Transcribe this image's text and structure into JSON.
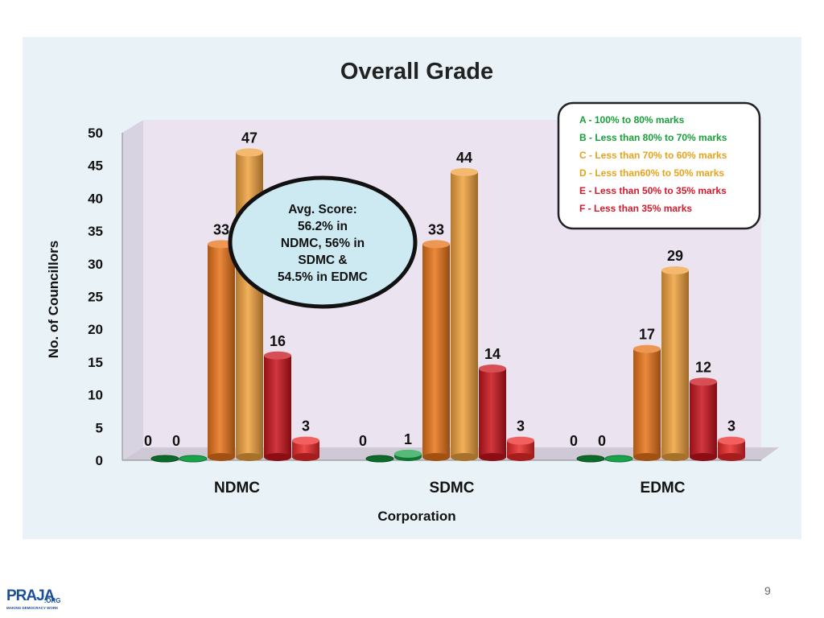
{
  "chart_data": {
    "type": "bar",
    "title": "Overall Grade",
    "xlabel": "Corporation",
    "ylabel": "No. of Councillors",
    "ylim": [
      0,
      50
    ],
    "yticks": [
      0,
      5,
      10,
      15,
      20,
      25,
      30,
      35,
      40,
      45,
      50
    ],
    "categories": [
      "NDMC",
      "SDMC",
      "EDMC"
    ],
    "series": [
      {
        "name": "A - 100% to 80% marks",
        "values": [
          0,
          0,
          0
        ],
        "color": "#0d6b2a"
      },
      {
        "name": "B - Less than  80%  to 70% marks",
        "values": [
          0,
          1,
          0
        ],
        "color": "#19a34a"
      },
      {
        "name": "C - Less than 70%  to 60% marks",
        "values": [
          33,
          33,
          17
        ],
        "color": "#e8741a"
      },
      {
        "name": "D - Less than60%  to 50% marks",
        "values": [
          47,
          44,
          29
        ],
        "color": "#f0a23e"
      },
      {
        "name": "E - Less than 50%  to 35% marks",
        "values": [
          16,
          14,
          12
        ],
        "color": "#c8141c"
      },
      {
        "name": "F - Less than 35% marks",
        "values": [
          3,
          3,
          3
        ],
        "color": "#ec2a2a"
      }
    ],
    "legend_position": "top-right",
    "legend_text_colors": [
      "#17a03a",
      "#17a03a",
      "#e8a21a",
      "#e8a21a",
      "#d51a2a",
      "#d51a2a"
    ]
  },
  "callout": {
    "lines": [
      "Avg. Score:",
      "56.2% in",
      "NDMC, 56% in",
      "SDMC &",
      "54.5% in EDMC"
    ]
  },
  "footer": {
    "page_number": "9",
    "logo_text": "PRAJA",
    "logo_suffix": ".ORG",
    "logo_tagline": "MAKING DEMOCRACY WORK"
  }
}
